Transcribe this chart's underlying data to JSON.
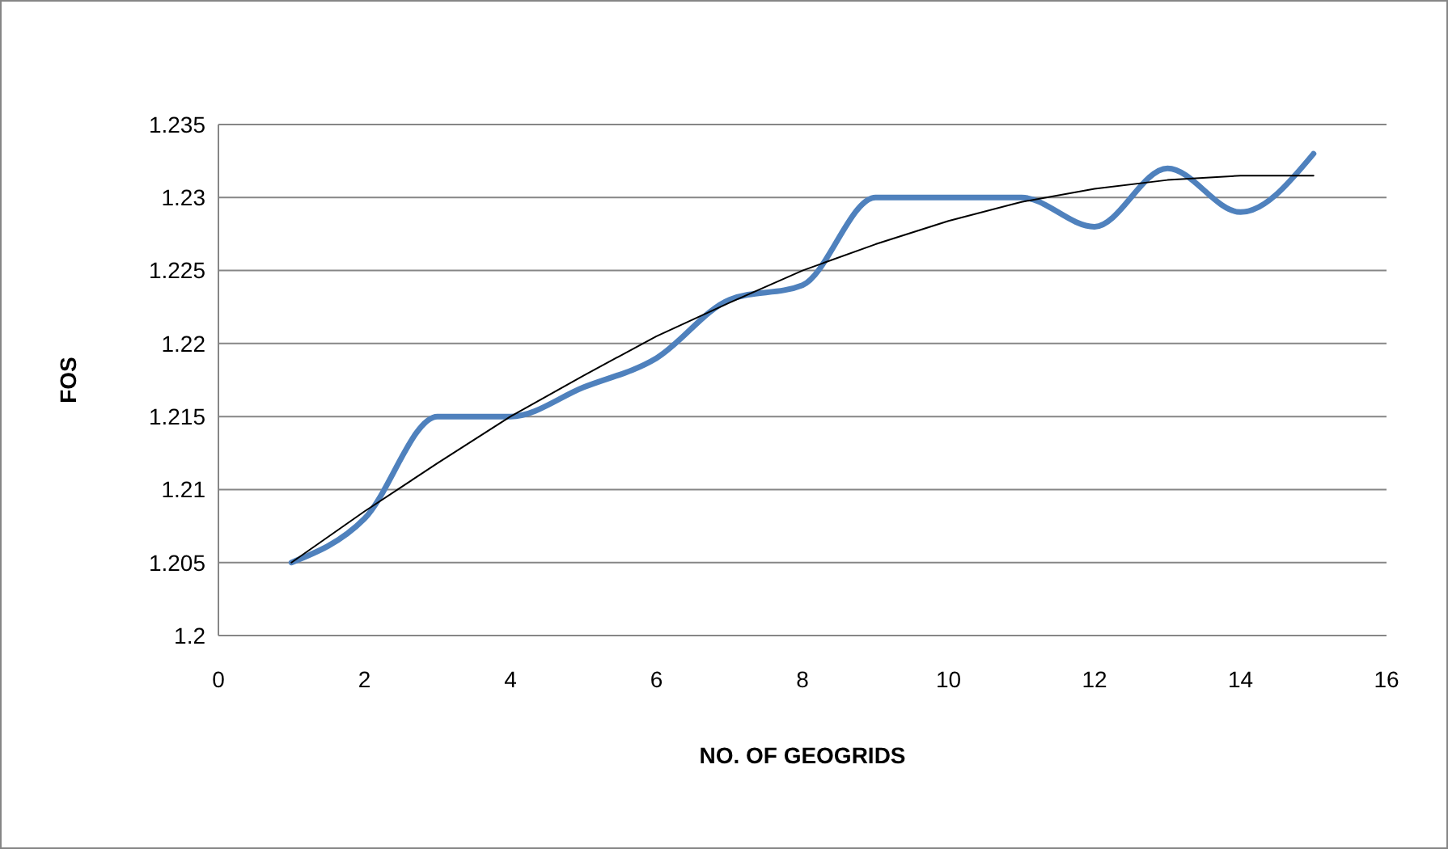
{
  "chart_data": {
    "type": "line",
    "xlabel": "NO. OF GEOGRIDS",
    "ylabel": "FOS",
    "x": [
      1,
      2,
      3,
      4,
      5,
      6,
      7,
      8,
      9,
      10,
      11,
      12,
      13,
      14,
      15
    ],
    "series": [
      {
        "color": "#4f81bd",
        "values": [
          1.205,
          1.208,
          1.215,
          1.215,
          1.217,
          1.219,
          1.223,
          1.224,
          1.23,
          1.23,
          1.23,
          1.228,
          1.232,
          1.229,
          1.233
        ]
      },
      {
        "color": "#000000",
        "values": [
          1.205,
          1.2085,
          1.2118,
          1.215,
          1.2178,
          1.2205,
          1.2228,
          1.225,
          1.2268,
          1.2284,
          1.2297,
          1.2306,
          1.2312,
          1.2315,
          1.2315
        ]
      }
    ],
    "xlim": [
      0,
      16
    ],
    "xticks": [
      0,
      2,
      4,
      6,
      8,
      10,
      12,
      14,
      16
    ],
    "ylim": [
      1.2,
      1.235
    ],
    "yticks": [
      {
        "value": 1.2,
        "label": "1.2"
      },
      {
        "value": 1.205,
        "label": "1.205"
      },
      {
        "value": 1.21,
        "label": "1.21"
      },
      {
        "value": 1.215,
        "label": "1.215"
      },
      {
        "value": 1.22,
        "label": "1.22"
      },
      {
        "value": 1.225,
        "label": "1.225"
      },
      {
        "value": 1.23,
        "label": "1.23"
      },
      {
        "value": 1.235,
        "label": "1.235"
      }
    ],
    "grid": "y",
    "marker": "none",
    "line_style": "solid"
  }
}
